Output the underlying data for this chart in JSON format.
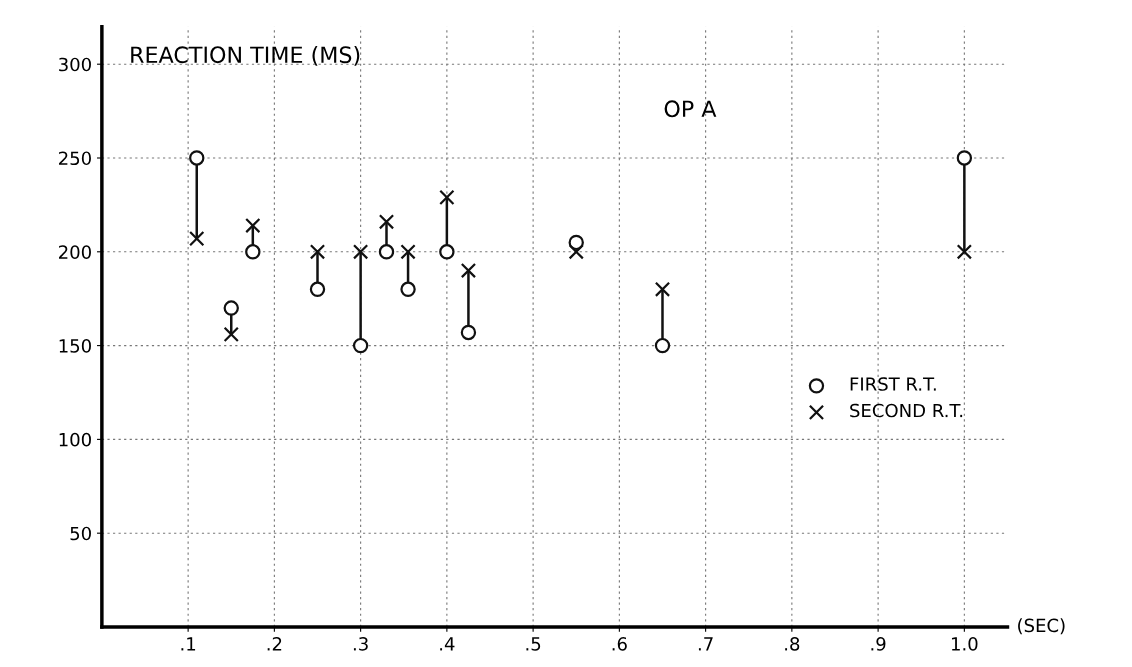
{
  "chart_data": {
    "type": "scatter",
    "title": "REACTION TIME (MS)",
    "xlabel": "(SEC)",
    "annotations": [
      "OP A"
    ],
    "x": [
      0.11,
      0.15,
      0.175,
      0.25,
      0.3,
      0.33,
      0.355,
      0.4,
      0.425,
      0.55,
      0.65,
      1.0
    ],
    "series": [
      {
        "name": "FIRST R.T.",
        "color": "#111111",
        "marker": "circle",
        "values": [
          250,
          170,
          200,
          180,
          150,
          200,
          180,
          200,
          157,
          205,
          150,
          250
        ]
      },
      {
        "name": "SECOND R.T.",
        "color": "#111111",
        "marker": "cross",
        "values": [
          207,
          156,
          214,
          200,
          200,
          216,
          200,
          229,
          190,
          200,
          180,
          200
        ]
      },
      {
        "type": "line",
        "color": "#111111",
        "marker": "none",
        "x": [
          0.11,
          0.11
        ],
        "values": [
          250,
          207
        ]
      },
      {
        "type": "line",
        "color": "#111111",
        "marker": "none",
        "x": [
          0.15,
          0.15
        ],
        "values": [
          170,
          156
        ]
      },
      {
        "type": "line",
        "color": "#111111",
        "marker": "none",
        "x": [
          0.175,
          0.175
        ],
        "values": [
          200,
          214
        ]
      },
      {
        "type": "line",
        "color": "#111111",
        "marker": "none",
        "x": [
          0.25,
          0.25
        ],
        "values": [
          180,
          200
        ]
      },
      {
        "type": "line",
        "color": "#111111",
        "marker": "none",
        "x": [
          0.3,
          0.3
        ],
        "values": [
          150,
          200
        ]
      },
      {
        "type": "line",
        "color": "#111111",
        "marker": "none",
        "x": [
          0.33,
          0.33
        ],
        "values": [
          200,
          216
        ]
      },
      {
        "type": "line",
        "color": "#111111",
        "marker": "none",
        "x": [
          0.355,
          0.355
        ],
        "values": [
          180,
          200
        ]
      },
      {
        "type": "line",
        "color": "#111111",
        "marker": "none",
        "x": [
          0.4,
          0.4
        ],
        "values": [
          200,
          229
        ]
      },
      {
        "type": "line",
        "color": "#111111",
        "marker": "none",
        "x": [
          0.425,
          0.425
        ],
        "values": [
          157,
          190
        ]
      },
      {
        "type": "line",
        "color": "#111111",
        "marker": "none",
        "x": [
          0.65,
          0.65
        ],
        "values": [
          150,
          180
        ]
      },
      {
        "type": "line",
        "color": "#111111",
        "marker": "none",
        "x": [
          1.0,
          1.0
        ],
        "values": [
          250,
          200
        ]
      }
    ],
    "xlim": [
      0,
      1.05
    ],
    "ylim": [
      0,
      320
    ],
    "xticks": [
      {
        "value": 0.1,
        "label": ".1"
      },
      {
        "value": 0.2,
        "label": ".2"
      },
      {
        "value": 0.3,
        "label": ".3"
      },
      {
        "value": 0.4,
        "label": ".4"
      },
      {
        "value": 0.5,
        "label": ".5"
      },
      {
        "value": 0.6,
        "label": ".6"
      },
      {
        "value": 0.7,
        "label": ".7"
      },
      {
        "value": 0.8,
        "label": ".8"
      },
      {
        "value": 0.9,
        "label": ".9"
      },
      {
        "value": 1.0,
        "label": "1.0"
      }
    ],
    "yticks": [
      50,
      100,
      150,
      200,
      250,
      300
    ],
    "grid": true,
    "legend": "right"
  }
}
